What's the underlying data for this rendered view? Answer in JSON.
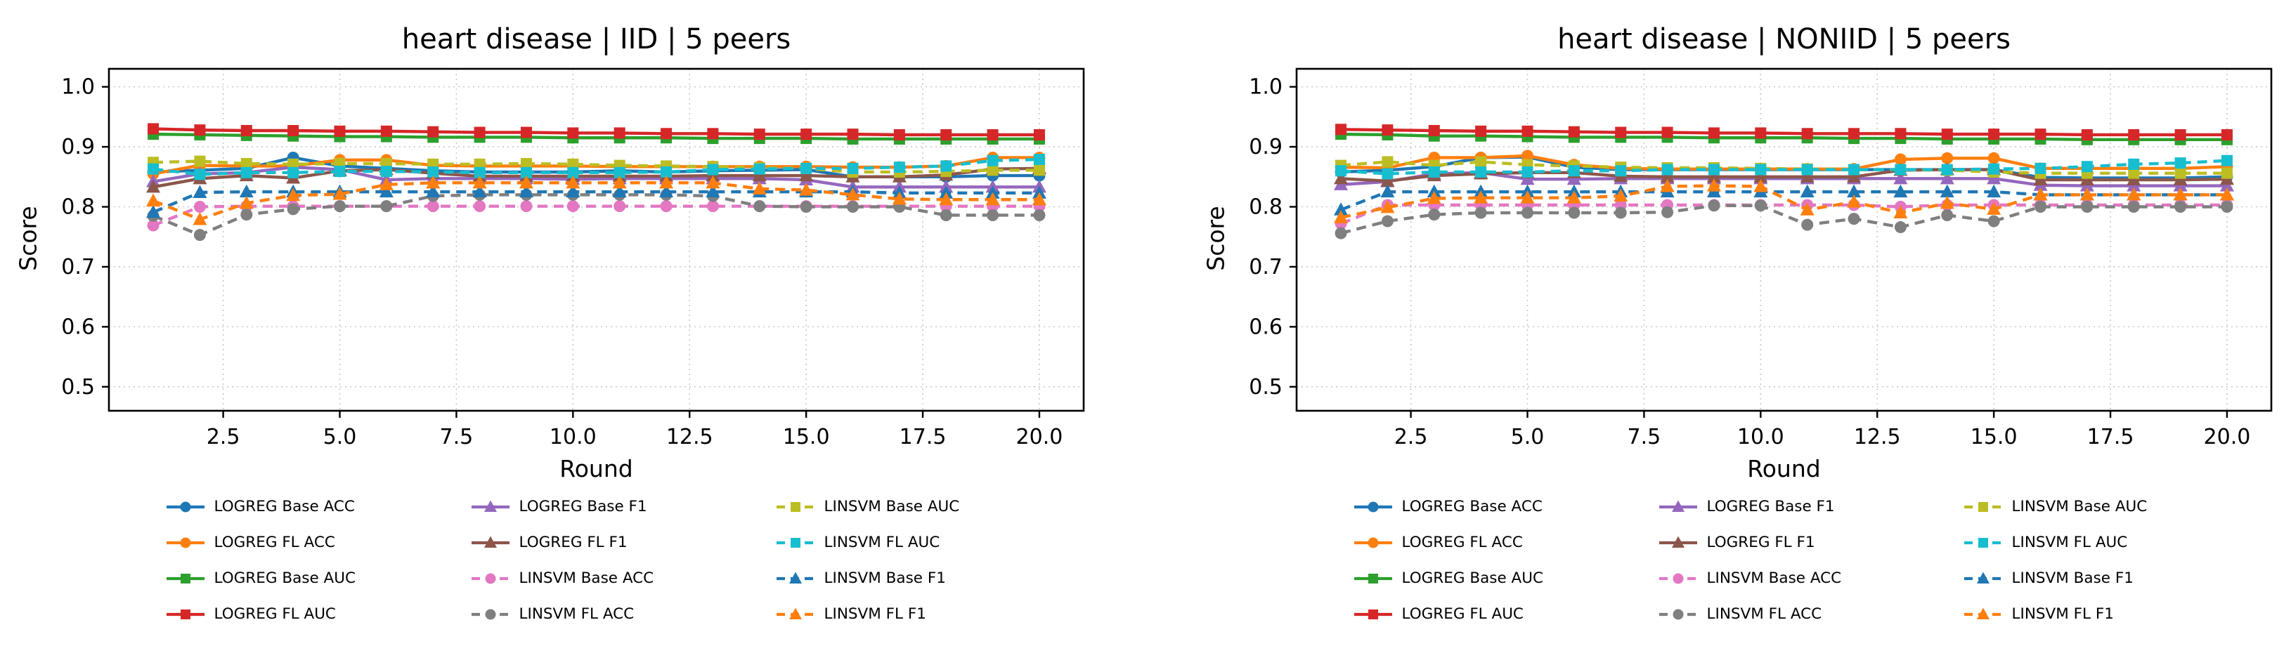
{
  "figure": {
    "background": "#ffffff"
  },
  "chart_data": [
    {
      "type": "line",
      "title": "heart disease | IID | 5 peers",
      "xlabel": "Round",
      "ylabel": "Score",
      "x": [
        1,
        2,
        3,
        4,
        5,
        6,
        7,
        8,
        9,
        10,
        11,
        12,
        13,
        14,
        15,
        16,
        17,
        18,
        19,
        20
      ],
      "xtick_labels": [
        "2.5",
        "5.0",
        "7.5",
        "10.0",
        "12.5",
        "15.0",
        "17.5",
        "20.0"
      ],
      "xticks": [
        2.5,
        5.0,
        7.5,
        10.0,
        12.5,
        15.0,
        17.5,
        20.0
      ],
      "ytick_labels": [
        "0.5",
        "0.6",
        "0.7",
        "0.8",
        "0.9",
        "1.0"
      ],
      "yticks": [
        0.5,
        0.6,
        0.7,
        0.8,
        0.9,
        1.0
      ],
      "xlim": [
        0.05,
        20.95
      ],
      "ylim": [
        0.46,
        1.03
      ],
      "grid": true,
      "legend_position": "below",
      "series": [
        {
          "name": "LOGREG Base ACC",
          "color": "#1f77b4",
          "linestyle": "solid",
          "marker": "circle",
          "values": [
            0.858,
            0.861,
            0.864,
            0.882,
            0.868,
            0.864,
            0.86,
            0.858,
            0.858,
            0.858,
            0.86,
            0.858,
            0.86,
            0.861,
            0.862,
            0.85,
            0.85,
            0.85,
            0.852,
            0.852
          ]
        },
        {
          "name": "LOGREG FL ACC",
          "color": "#ff7f0e",
          "linestyle": "solid",
          "marker": "circle",
          "values": [
            0.855,
            0.869,
            0.868,
            0.868,
            0.878,
            0.878,
            0.869,
            0.868,
            0.868,
            0.868,
            0.867,
            0.867,
            0.867,
            0.867,
            0.867,
            0.866,
            0.866,
            0.868,
            0.882,
            0.882
          ]
        },
        {
          "name": "LOGREG Base AUC",
          "color": "#2ca02c",
          "linestyle": "solid",
          "marker": "square",
          "values": [
            0.921,
            0.92,
            0.919,
            0.918,
            0.917,
            0.917,
            0.916,
            0.916,
            0.916,
            0.915,
            0.915,
            0.915,
            0.914,
            0.914,
            0.914,
            0.913,
            0.913,
            0.913,
            0.913,
            0.913
          ]
        },
        {
          "name": "LOGREG FL AUC",
          "color": "#d62728",
          "linestyle": "solid",
          "marker": "square",
          "values": [
            0.93,
            0.928,
            0.927,
            0.927,
            0.926,
            0.926,
            0.925,
            0.924,
            0.924,
            0.923,
            0.923,
            0.922,
            0.922,
            0.921,
            0.921,
            0.921,
            0.92,
            0.92,
            0.92,
            0.92
          ]
        },
        {
          "name": "LOGREG Base F1",
          "color": "#9467bd",
          "linestyle": "solid",
          "marker": "triangle",
          "values": [
            0.842,
            0.855,
            0.857,
            0.866,
            0.862,
            0.845,
            0.847,
            0.847,
            0.847,
            0.846,
            0.847,
            0.847,
            0.847,
            0.847,
            0.845,
            0.833,
            0.833,
            0.833,
            0.833,
            0.833
          ]
        },
        {
          "name": "LOGREG FL F1",
          "color": "#8c564b",
          "linestyle": "solid",
          "marker": "triangle",
          "values": [
            0.833,
            0.847,
            0.852,
            0.848,
            0.86,
            0.862,
            0.856,
            0.851,
            0.851,
            0.851,
            0.851,
            0.851,
            0.852,
            0.852,
            0.852,
            0.85,
            0.85,
            0.853,
            0.863,
            0.864
          ]
        },
        {
          "name": "LINSVM Base ACC",
          "color": "#e377c2",
          "linestyle": "dashed",
          "marker": "circle",
          "values": [
            0.769,
            0.8,
            0.801,
            0.801,
            0.801,
            0.801,
            0.801,
            0.801,
            0.801,
            0.801,
            0.801,
            0.801,
            0.801,
            0.801,
            0.801,
            0.801,
            0.801,
            0.801,
            0.801,
            0.801
          ]
        },
        {
          "name": "LINSVM FL ACC",
          "color": "#7f7f7f",
          "linestyle": "dashed",
          "marker": "circle",
          "values": [
            0.785,
            0.753,
            0.787,
            0.796,
            0.801,
            0.801,
            0.818,
            0.82,
            0.82,
            0.82,
            0.82,
            0.82,
            0.818,
            0.801,
            0.8,
            0.8,
            0.8,
            0.786,
            0.786,
            0.786
          ]
        },
        {
          "name": "LINSVM Base AUC",
          "color": "#bcbd22",
          "linestyle": "dashed",
          "marker": "square",
          "values": [
            0.874,
            0.876,
            0.872,
            0.871,
            0.872,
            0.872,
            0.871,
            0.871,
            0.872,
            0.871,
            0.869,
            0.868,
            0.867,
            0.865,
            0.864,
            0.858,
            0.858,
            0.859,
            0.861,
            0.861
          ]
        },
        {
          "name": "LINSVM FL AUC",
          "color": "#17becf",
          "linestyle": "dashed",
          "marker": "square",
          "values": [
            0.863,
            0.854,
            0.857,
            0.857,
            0.859,
            0.859,
            0.858,
            0.857,
            0.857,
            0.857,
            0.857,
            0.858,
            0.862,
            0.863,
            0.864,
            0.864,
            0.866,
            0.868,
            0.877,
            0.879
          ]
        },
        {
          "name": "LINSVM Base F1",
          "color": "#1f77b4",
          "linestyle": "dashed",
          "marker": "triangle",
          "values": [
            0.791,
            0.824,
            0.825,
            0.825,
            0.825,
            0.825,
            0.825,
            0.825,
            0.825,
            0.825,
            0.825,
            0.825,
            0.825,
            0.825,
            0.825,
            0.825,
            0.823,
            0.823,
            0.823,
            0.823
          ]
        },
        {
          "name": "LINSVM FL F1",
          "color": "#ff7f0e",
          "linestyle": "dashed",
          "marker": "triangle",
          "values": [
            0.81,
            0.779,
            0.806,
            0.819,
            0.821,
            0.837,
            0.84,
            0.84,
            0.84,
            0.84,
            0.84,
            0.84,
            0.84,
            0.83,
            0.828,
            0.82,
            0.813,
            0.812,
            0.812,
            0.812
          ]
        }
      ]
    },
    {
      "type": "line",
      "title": "heart disease | NONIID | 5 peers",
      "xlabel": "Round",
      "ylabel": "Score",
      "x": [
        1,
        2,
        3,
        4,
        5,
        6,
        7,
        8,
        9,
        10,
        11,
        12,
        13,
        14,
        15,
        16,
        17,
        18,
        19,
        20
      ],
      "xtick_labels": [
        "2.5",
        "5.0",
        "7.5",
        "10.0",
        "12.5",
        "15.0",
        "17.5",
        "20.0"
      ],
      "xticks": [
        2.5,
        5.0,
        7.5,
        10.0,
        12.5,
        15.0,
        17.5,
        20.0
      ],
      "ytick_labels": [
        "0.5",
        "0.6",
        "0.7",
        "0.8",
        "0.9",
        "1.0"
      ],
      "yticks": [
        0.5,
        0.6,
        0.7,
        0.8,
        0.9,
        1.0
      ],
      "xlim": [
        0.05,
        20.95
      ],
      "ylim": [
        0.46,
        1.03
      ],
      "grid": true,
      "legend_position": "below",
      "series": [
        {
          "name": "LOGREG Base ACC",
          "color": "#1f77b4",
          "linestyle": "solid",
          "marker": "circle",
          "values": [
            0.858,
            0.861,
            0.867,
            0.882,
            0.883,
            0.866,
            0.862,
            0.862,
            0.862,
            0.862,
            0.862,
            0.862,
            0.862,
            0.862,
            0.862,
            0.849,
            0.848,
            0.848,
            0.848,
            0.85
          ]
        },
        {
          "name": "LOGREG FL ACC",
          "color": "#ff7f0e",
          "linestyle": "solid",
          "marker": "circle",
          "values": [
            0.866,
            0.865,
            0.882,
            0.882,
            0.885,
            0.87,
            0.864,
            0.863,
            0.863,
            0.863,
            0.863,
            0.863,
            0.879,
            0.881,
            0.881,
            0.864,
            0.864,
            0.864,
            0.864,
            0.867
          ]
        },
        {
          "name": "LOGREG Base AUC",
          "color": "#2ca02c",
          "linestyle": "solid",
          "marker": "square",
          "values": [
            0.921,
            0.92,
            0.918,
            0.918,
            0.917,
            0.916,
            0.916,
            0.916,
            0.915,
            0.915,
            0.915,
            0.914,
            0.914,
            0.913,
            0.913,
            0.913,
            0.912,
            0.912,
            0.912,
            0.912
          ]
        },
        {
          "name": "LOGREG FL AUC",
          "color": "#d62728",
          "linestyle": "solid",
          "marker": "square",
          "values": [
            0.929,
            0.928,
            0.927,
            0.926,
            0.926,
            0.925,
            0.924,
            0.924,
            0.923,
            0.923,
            0.922,
            0.922,
            0.922,
            0.921,
            0.921,
            0.921,
            0.92,
            0.92,
            0.92,
            0.92
          ]
        },
        {
          "name": "LOGREG Base F1",
          "color": "#9467bd",
          "linestyle": "solid",
          "marker": "triangle",
          "values": [
            0.837,
            0.842,
            0.855,
            0.857,
            0.846,
            0.846,
            0.847,
            0.847,
            0.847,
            0.847,
            0.847,
            0.847,
            0.847,
            0.847,
            0.847,
            0.836,
            0.835,
            0.835,
            0.835,
            0.835
          ]
        },
        {
          "name": "LOGREG FL F1",
          "color": "#8c564b",
          "linestyle": "solid",
          "marker": "triangle",
          "values": [
            0.847,
            0.843,
            0.852,
            0.855,
            0.857,
            0.857,
            0.851,
            0.85,
            0.85,
            0.85,
            0.85,
            0.85,
            0.861,
            0.862,
            0.862,
            0.845,
            0.845,
            0.845,
            0.845,
            0.846
          ]
        },
        {
          "name": "LINSVM Base ACC",
          "color": "#e377c2",
          "linestyle": "dashed",
          "marker": "circle",
          "values": [
            0.772,
            0.803,
            0.803,
            0.803,
            0.803,
            0.803,
            0.803,
            0.803,
            0.803,
            0.803,
            0.803,
            0.803,
            0.8,
            0.803,
            0.803,
            0.803,
            0.803,
            0.803,
            0.803,
            0.803
          ]
        },
        {
          "name": "LINSVM FL ACC",
          "color": "#7f7f7f",
          "linestyle": "dashed",
          "marker": "circle",
          "values": [
            0.756,
            0.776,
            0.787,
            0.79,
            0.79,
            0.79,
            0.79,
            0.791,
            0.802,
            0.802,
            0.77,
            0.78,
            0.766,
            0.786,
            0.776,
            0.8,
            0.8,
            0.8,
            0.8,
            0.8
          ]
        },
        {
          "name": "LINSVM Base AUC",
          "color": "#bcbd22",
          "linestyle": "dashed",
          "marker": "square",
          "values": [
            0.869,
            0.875,
            0.869,
            0.875,
            0.87,
            0.868,
            0.866,
            0.865,
            0.865,
            0.864,
            0.863,
            0.862,
            0.862,
            0.861,
            0.858,
            0.856,
            0.856,
            0.856,
            0.856,
            0.856
          ]
        },
        {
          "name": "LINSVM FL AUC",
          "color": "#17becf",
          "linestyle": "dashed",
          "marker": "square",
          "values": [
            0.86,
            0.855,
            0.858,
            0.858,
            0.858,
            0.86,
            0.86,
            0.862,
            0.862,
            0.862,
            0.862,
            0.862,
            0.862,
            0.862,
            0.863,
            0.864,
            0.867,
            0.871,
            0.873,
            0.877
          ]
        },
        {
          "name": "LINSVM Base F1",
          "color": "#1f77b4",
          "linestyle": "dashed",
          "marker": "triangle",
          "values": [
            0.795,
            0.825,
            0.825,
            0.825,
            0.825,
            0.825,
            0.825,
            0.825,
            0.825,
            0.825,
            0.825,
            0.825,
            0.825,
            0.825,
            0.825,
            0.82,
            0.82,
            0.82,
            0.82,
            0.82
          ]
        },
        {
          "name": "LINSVM FL F1",
          "color": "#ff7f0e",
          "linestyle": "dashed",
          "marker": "triangle",
          "values": [
            0.782,
            0.799,
            0.814,
            0.815,
            0.815,
            0.815,
            0.818,
            0.834,
            0.835,
            0.834,
            0.795,
            0.808,
            0.79,
            0.806,
            0.796,
            0.82,
            0.82,
            0.82,
            0.82,
            0.82
          ]
        }
      ]
    }
  ]
}
